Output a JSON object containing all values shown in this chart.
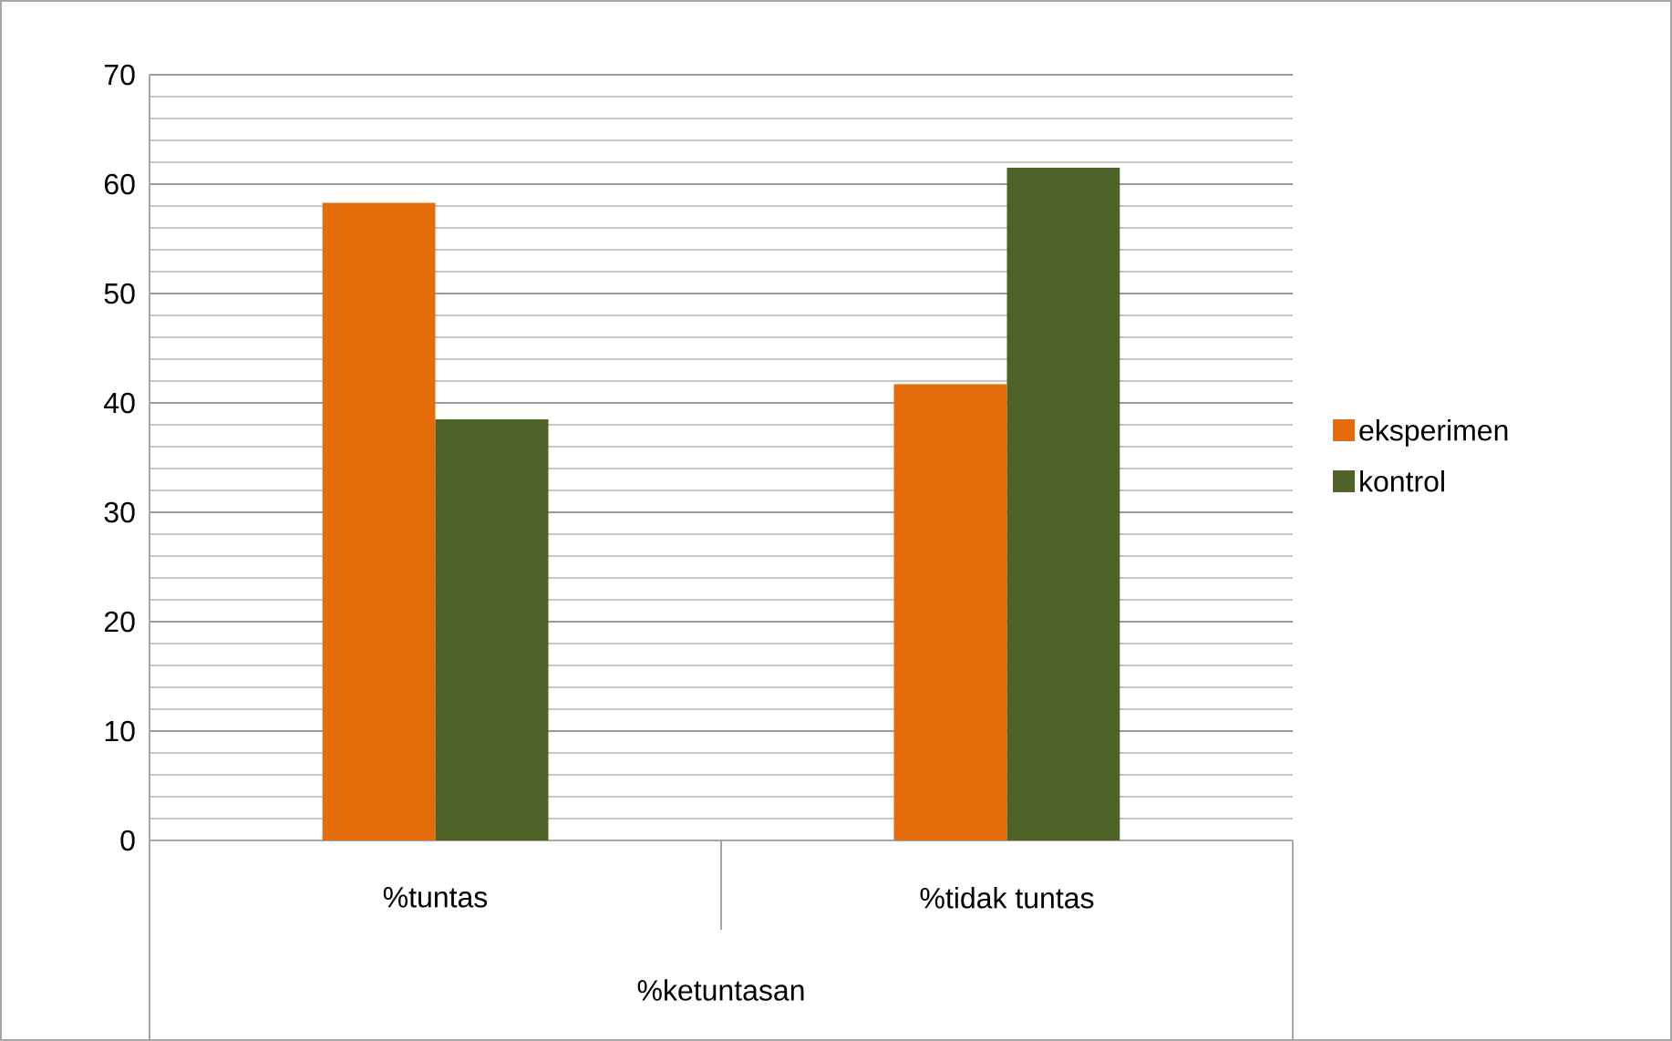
{
  "chart_data": {
    "type": "bar",
    "xlabel": "%ketuntasan",
    "categories": [
      "%tuntas",
      "%tidak tuntas"
    ],
    "series": [
      {
        "name": "eksperimen",
        "color": "#e46c0a",
        "values": [
          58.3,
          41.7
        ]
      },
      {
        "name": "kontrol",
        "color": "#4f6228",
        "values": [
          38.5,
          61.5
        ]
      }
    ],
    "ylim": [
      0,
      70
    ],
    "yticks": [
      0,
      10,
      20,
      30,
      40,
      50,
      60,
      70
    ],
    "grid": "y",
    "legend": "right"
  }
}
